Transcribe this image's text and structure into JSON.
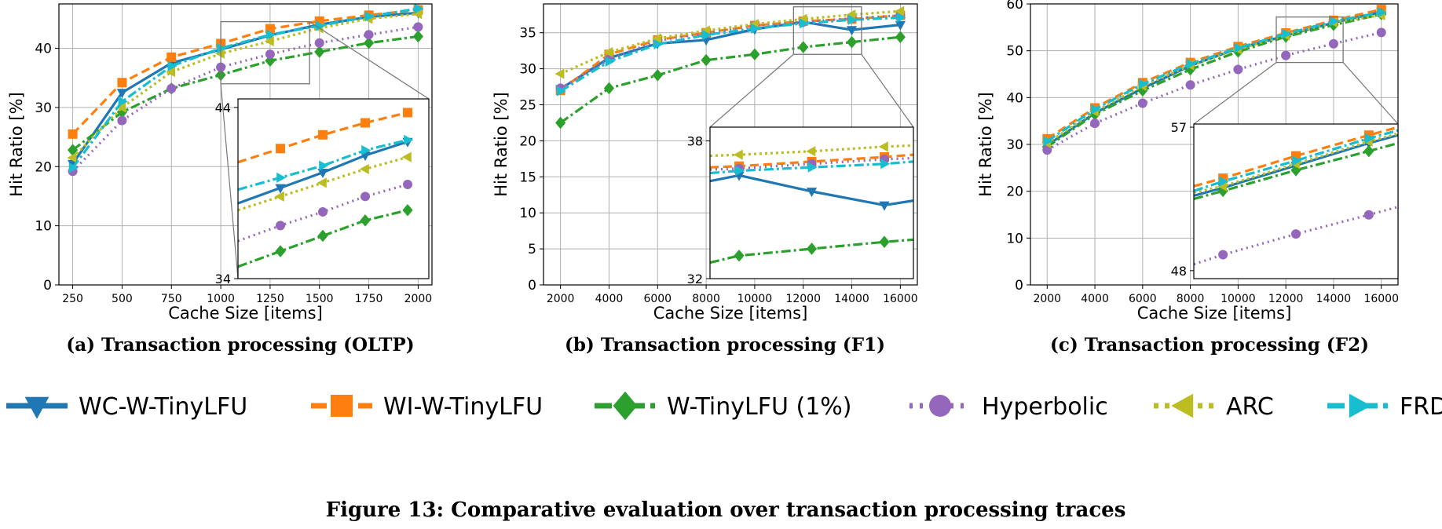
{
  "figure_caption": "Figure 13: Comparative evaluation over transaction processing traces",
  "colors": {
    "WC-W-TinyLFU": "#1f77b4",
    "WI-W-TinyLFU": "#ff7f0e",
    "W-TinyLFU (1%)": "#2ca02c",
    "Hyperbolic": "#9467bd",
    "ARC": "#bcbd22",
    "FRD": "#17becf"
  },
  "legend": [
    "WC-W-TinyLFU",
    "WI-W-TinyLFU",
    "W-TinyLFU (1%)",
    "Hyperbolic",
    "ARC",
    "FRD"
  ],
  "chart_data": [
    {
      "type": "line",
      "panel_title": "(a) Transaction processing (OLTP)",
      "xlabel": "Cache Size [items]",
      "ylabel": "Hit Ratio [%]",
      "xlim": [
        180,
        2070
      ],
      "ylim": [
        0,
        47.5
      ],
      "xticks": [
        250,
        500,
        750,
        1000,
        1250,
        1500,
        1750,
        2000
      ],
      "yticks": [
        0,
        10,
        20,
        30,
        40
      ],
      "grid": true,
      "series": [
        {
          "name": "WC-W-TinyLFU",
          "x": [
            250,
            500,
            750,
            1000,
            1250,
            1500,
            1750,
            2000
          ],
          "values": [
            20.5,
            32.5,
            37.5,
            39.8,
            42.2,
            44.0,
            45.3,
            46.0
          ]
        },
        {
          "name": "WI-W-TinyLFU",
          "x": [
            250,
            500,
            750,
            1000,
            1250,
            1500,
            1750,
            2000
          ],
          "values": [
            25.5,
            34.2,
            38.5,
            40.8,
            43.3,
            44.6,
            45.6,
            46.5
          ]
        },
        {
          "name": "W-TinyLFU (1%)",
          "x": [
            250,
            500,
            750,
            1000,
            1250,
            1500,
            1750,
            2000
          ],
          "values": [
            22.8,
            29.2,
            33.2,
            35.5,
            37.9,
            39.4,
            40.9,
            42.0
          ]
        },
        {
          "name": "Hyperbolic",
          "x": [
            250,
            500,
            750,
            1000,
            1250,
            1500,
            1750,
            2000
          ],
          "values": [
            19.2,
            27.8,
            33.2,
            36.8,
            39.0,
            40.9,
            42.3,
            43.6
          ]
        },
        {
          "name": "ARC",
          "x": [
            250,
            500,
            750,
            1000,
            1250,
            1500,
            1750,
            2000
          ],
          "values": [
            21.5,
            30.0,
            36.0,
            39.1,
            41.2,
            43.4,
            45.0,
            45.8
          ]
        },
        {
          "name": "FRD",
          "x": [
            250,
            500,
            750,
            1000,
            1250,
            1500,
            1750,
            2000
          ],
          "values": [
            19.8,
            31.0,
            37.0,
            40.0,
            42.3,
            43.8,
            45.4,
            46.7
          ]
        }
      ],
      "inset": {
        "xlim": [
          1000,
          1450
        ],
        "ylim": [
          34,
          44.5
        ],
        "yticks": [
          34,
          44
        ],
        "series": [
          {
            "name": "WC-W-TinyLFU",
            "x": [
              1000,
              1100,
              1200,
              1300,
              1400
            ],
            "values": [
              38.4,
              39.3,
              40.2,
              41.2,
              42.0
            ]
          },
          {
            "name": "WI-W-TinyLFU",
            "x": [
              1000,
              1100,
              1200,
              1300,
              1400
            ],
            "values": [
              40.8,
              41.6,
              42.4,
              43.1,
              43.7
            ]
          },
          {
            "name": "W-TinyLFU (1%)",
            "x": [
              1000,
              1100,
              1200,
              1300,
              1400
            ],
            "values": [
              34.7,
              35.6,
              36.5,
              37.4,
              38.0
            ]
          },
          {
            "name": "Hyperbolic",
            "x": [
              1000,
              1100,
              1200,
              1300,
              1400
            ],
            "values": [
              36.2,
              37.1,
              37.9,
              38.8,
              39.5
            ]
          },
          {
            "name": "ARC",
            "x": [
              1000,
              1100,
              1200,
              1300,
              1400
            ],
            "values": [
              38.0,
              38.8,
              39.6,
              40.4,
              41.1
            ]
          },
          {
            "name": "FRD",
            "x": [
              1000,
              1100,
              1200,
              1300,
              1400
            ],
            "values": [
              39.2,
              39.9,
              40.6,
              41.5,
              42.1
            ]
          }
        ]
      }
    },
    {
      "type": "line",
      "panel_title": "(b) Transaction processing (F1)",
      "xlabel": "Cache Size [items]",
      "ylabel": "Hit Ratio [%]",
      "xlim": [
        1300,
        16700
      ],
      "ylim": [
        0,
        39
      ],
      "xticks": [
        2000,
        4000,
        6000,
        8000,
        10000,
        12000,
        14000,
        16000
      ],
      "yticks": [
        0,
        5,
        10,
        15,
        20,
        25,
        30,
        35
      ],
      "grid": true,
      "series": [
        {
          "name": "WC-W-TinyLFU",
          "x": [
            2000,
            4000,
            6000,
            8000,
            10000,
            12000,
            14000,
            16000
          ],
          "values": [
            27.2,
            31.5,
            33.5,
            34.0,
            35.5,
            36.5,
            35.4,
            36.1
          ]
        },
        {
          "name": "WI-W-TinyLFU",
          "x": [
            2000,
            4000,
            6000,
            8000,
            10000,
            12000,
            14000,
            16000
          ],
          "values": [
            27.0,
            32.0,
            34.0,
            35.0,
            36.0,
            36.6,
            36.9,
            37.4
          ]
        },
        {
          "name": "W-TinyLFU (1%)",
          "x": [
            2000,
            4000,
            6000,
            8000,
            10000,
            12000,
            14000,
            16000
          ],
          "values": [
            22.5,
            27.3,
            29.1,
            31.2,
            32.0,
            33.0,
            33.7,
            34.4
          ]
        },
        {
          "name": "Hyperbolic",
          "x": [
            2000,
            4000,
            6000,
            8000,
            10000,
            12000,
            14000,
            16000
          ],
          "values": [
            27.3,
            31.3,
            33.9,
            35.0,
            36.0,
            36.5,
            37.0,
            37.4
          ]
        },
        {
          "name": "ARC",
          "x": [
            2000,
            4000,
            6000,
            8000,
            10000,
            12000,
            14000,
            16000
          ],
          "values": [
            29.3,
            32.3,
            34.2,
            35.3,
            36.2,
            36.9,
            37.5,
            38.0
          ]
        },
        {
          "name": "FRD",
          "x": [
            2000,
            4000,
            6000,
            8000,
            10000,
            12000,
            14000,
            16000
          ],
          "values": [
            26.9,
            31.0,
            33.4,
            34.7,
            35.6,
            36.3,
            36.8,
            37.1
          ]
        }
      ],
      "inset": {
        "xlim": [
          11600,
          14400
        ],
        "ylim": [
          32,
          38.6
        ],
        "yticks": [
          32,
          38
        ],
        "series": [
          {
            "name": "WC-W-TinyLFU",
            "x": [
              11600,
              12000,
              13000,
              14000,
              14400
            ],
            "values": [
              36.25,
              36.5,
              35.8,
              35.2,
              35.4
            ]
          },
          {
            "name": "WI-W-TinyLFU",
            "x": [
              11600,
              12000,
              13000,
              14000,
              14400
            ],
            "values": [
              36.85,
              36.9,
              37.1,
              37.3,
              37.4
            ]
          },
          {
            "name": "W-TinyLFU (1%)",
            "x": [
              11600,
              12000,
              13000,
              14000,
              14400
            ],
            "values": [
              32.7,
              33.0,
              33.3,
              33.6,
              33.7
            ]
          },
          {
            "name": "Hyperbolic",
            "x": [
              11600,
              12000,
              13000,
              14000,
              14400
            ],
            "values": [
              36.75,
              36.8,
              37.0,
              37.2,
              37.25
            ]
          },
          {
            "name": "ARC",
            "x": [
              11600,
              12000,
              13000,
              14000,
              14400
            ],
            "values": [
              37.35,
              37.4,
              37.55,
              37.75,
              37.8
            ]
          },
          {
            "name": "FRD",
            "x": [
              11600,
              12000,
              13000,
              14000,
              14400
            ],
            "values": [
              36.6,
              36.7,
              36.85,
              37.0,
              37.1
            ]
          }
        ]
      }
    },
    {
      "type": "line",
      "panel_title": "(c) Transaction processing (F2)",
      "xlabel": "Cache Size [items]",
      "ylabel": "Hit Ratio [%]",
      "xlim": [
        1300,
        16700
      ],
      "ylim": [
        0,
        60
      ],
      "xticks": [
        2000,
        4000,
        6000,
        8000,
        10000,
        12000,
        14000,
        16000
      ],
      "yticks": [
        0,
        10,
        20,
        30,
        40,
        50,
        60
      ],
      "grid": true,
      "series": [
        {
          "name": "WC-W-TinyLFU",
          "x": [
            2000,
            4000,
            6000,
            8000,
            10000,
            12000,
            14000,
            16000
          ],
          "values": [
            29.8,
            36.7,
            42.0,
            46.8,
            50.5,
            53.2,
            56.0,
            58.3
          ]
        },
        {
          "name": "WI-W-TinyLFU",
          "x": [
            2000,
            4000,
            6000,
            8000,
            10000,
            12000,
            14000,
            16000
          ],
          "values": [
            31.2,
            37.8,
            43.2,
            47.5,
            50.9,
            53.8,
            56.5,
            58.8
          ]
        },
        {
          "name": "W-TinyLFU (1%)",
          "x": [
            2000,
            4000,
            6000,
            8000,
            10000,
            12000,
            14000,
            16000
          ],
          "values": [
            29.5,
            36.4,
            41.5,
            46.0,
            49.8,
            53.0,
            55.5,
            57.8
          ]
        },
        {
          "name": "Hyperbolic",
          "x": [
            2000,
            4000,
            6000,
            8000,
            10000,
            12000,
            14000,
            16000
          ],
          "values": [
            28.8,
            34.5,
            38.8,
            42.7,
            46.0,
            49.0,
            51.5,
            53.9
          ]
        },
        {
          "name": "ARC",
          "x": [
            2000,
            4000,
            6000,
            8000,
            10000,
            12000,
            14000,
            16000
          ],
          "values": [
            30.3,
            37.0,
            42.5,
            46.9,
            50.3,
            53.3,
            56.1,
            57.6
          ]
        },
        {
          "name": "FRD",
          "x": [
            2000,
            4000,
            6000,
            8000,
            10000,
            12000,
            14000,
            16000
          ],
          "values": [
            30.7,
            37.5,
            42.9,
            47.2,
            50.6,
            53.6,
            56.3,
            58.2
          ]
        }
      ],
      "inset": {
        "xlim": [
          11600,
          14400
        ],
        "ylim": [
          47.5,
          57.2
        ],
        "yticks": [
          48,
          57
        ],
        "series": [
          {
            "name": "WC-W-TinyLFU",
            "x": [
              11600,
              12000,
              13000,
              14000,
              14400
            ],
            "values": [
              52.7,
              53.2,
              54.6,
              56.0,
              56.5
            ]
          },
          {
            "name": "WI-W-TinyLFU",
            "x": [
              11600,
              12000,
              13000,
              14000,
              14400
            ],
            "values": [
              53.3,
              53.8,
              55.2,
              56.5,
              57.0
            ]
          },
          {
            "name": "W-TinyLFU (1%)",
            "x": [
              11600,
              12000,
              13000,
              14000,
              14400
            ],
            "values": [
              52.5,
              53.0,
              54.3,
              55.5,
              56.0
            ]
          },
          {
            "name": "Hyperbolic",
            "x": [
              11600,
              12000,
              13000,
              14000,
              14400
            ],
            "values": [
              48.4,
              49.0,
              50.3,
              51.5,
              52.0
            ]
          },
          {
            "name": "ARC",
            "x": [
              11600,
              12000,
              13000,
              14000,
              14400
            ],
            "values": [
              52.9,
              53.3,
              54.7,
              56.1,
              56.6
            ]
          },
          {
            "name": "FRD",
            "x": [
              11600,
              12000,
              13000,
              14000,
              14400
            ],
            "values": [
              53.0,
              53.6,
              54.9,
              56.3,
              56.8
            ]
          }
        ]
      }
    }
  ]
}
